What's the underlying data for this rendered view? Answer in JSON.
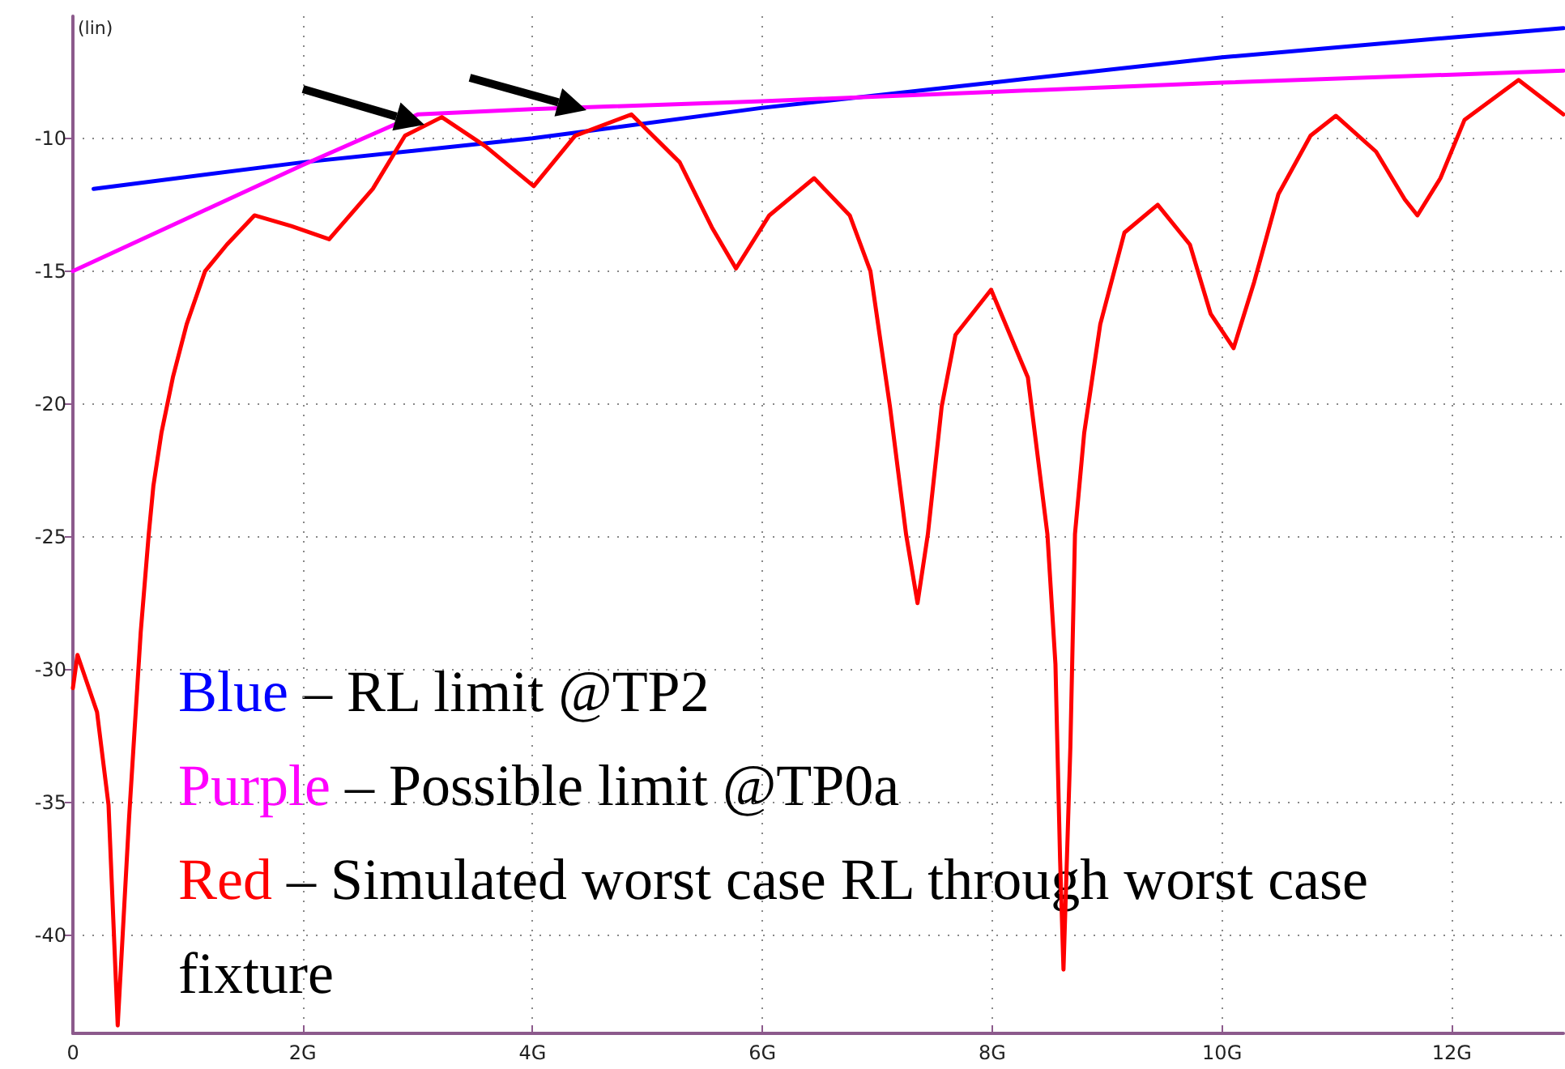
{
  "chart_data": {
    "type": "line",
    "ylabel": "(lin)",
    "xlim": [
      0,
      12.97
    ],
    "ylim": [
      -43.7,
      -5.4
    ],
    "xticks": [
      0,
      {
        "value": 2,
        "label": "2G"
      },
      {
        "value": 4,
        "label": "4G"
      },
      {
        "value": 6,
        "label": "6G"
      },
      {
        "value": 8,
        "label": "8G"
      },
      {
        "value": 10,
        "label": "10G"
      },
      {
        "value": 12,
        "label": "12G"
      }
    ],
    "yticks": [
      -10,
      -15,
      -20,
      -25,
      -30,
      -35,
      -40
    ],
    "grid": true,
    "marker": "none",
    "line_style": "solid",
    "annotations": [
      "Blue – RL limit @TP2",
      "Purple – Possible limit @TP0a",
      "Red – Simulated worst case RL through worst case fixture"
    ],
    "series": [
      {
        "color": "#0000ff",
        "x": [
          0.18,
          2,
          4,
          6,
          8,
          10,
          12,
          12.97
        ],
        "values": [
          -11.9,
          -10.9,
          -10,
          -8.85,
          -7.9,
          -6.95,
          -6.2,
          -5.85
        ]
      },
      {
        "color": "#ff00ff",
        "x": [
          0,
          1,
          2,
          3,
          4,
          6,
          8,
          10,
          12,
          12.97
        ],
        "values": [
          -15,
          -13,
          -11,
          -9.1,
          -8.9,
          -8.6,
          -8.25,
          -7.9,
          -7.6,
          -7.45
        ]
      },
      {
        "color": "#ff0000",
        "x": [
          0,
          0.04,
          0.21,
          0.31,
          0.39,
          0.49,
          0.59,
          0.66,
          0.7,
          0.77,
          0.87,
          0.99,
          1.15,
          1.34,
          1.58,
          1.9,
          2.23,
          2.61,
          2.89,
          3.21,
          3.59,
          4.01,
          4.37,
          4.86,
          5.28,
          5.56,
          5.77,
          6.06,
          6.45,
          6.76,
          6.94,
          7.11,
          7.25,
          7.35,
          7.44,
          7.56,
          7.68,
          7.99,
          8.31,
          8.48,
          8.55,
          8.59,
          8.62,
          8.68,
          8.72,
          8.8,
          8.94,
          9.15,
          9.44,
          9.72,
          9.9,
          10.1,
          10.28,
          10.49,
          10.77,
          10.99,
          11.34,
          11.59,
          11.7,
          11.9,
          12.11,
          12.58,
          12.97
        ],
        "values": [
          -30.7,
          -29.45,
          -31.6,
          -35.1,
          -43.4,
          -35.5,
          -28.6,
          -24.9,
          -23.1,
          -21.1,
          -19,
          -17,
          -15,
          -14,
          -12.9,
          -13.3,
          -13.8,
          -11.9,
          -9.9,
          -9.2,
          -10.3,
          -11.8,
          -9.9,
          -9.1,
          -10.9,
          -13.35,
          -14.9,
          -12.9,
          -11.5,
          -12.9,
          -15,
          -20.1,
          -24.9,
          -27.5,
          -24.9,
          -20.1,
          -17.4,
          -15.7,
          -19,
          -24.9,
          -29.8,
          -37.1,
          -41.3,
          -32.9,
          -24.9,
          -21.1,
          -17,
          -13.55,
          -12.5,
          -14,
          -16.6,
          -17.9,
          -15.4,
          -12.1,
          -9.9,
          -9.15,
          -10.5,
          -12.3,
          -12.9,
          -11.5,
          -9.3,
          -7.8,
          -9.1
        ]
      }
    ]
  }
}
